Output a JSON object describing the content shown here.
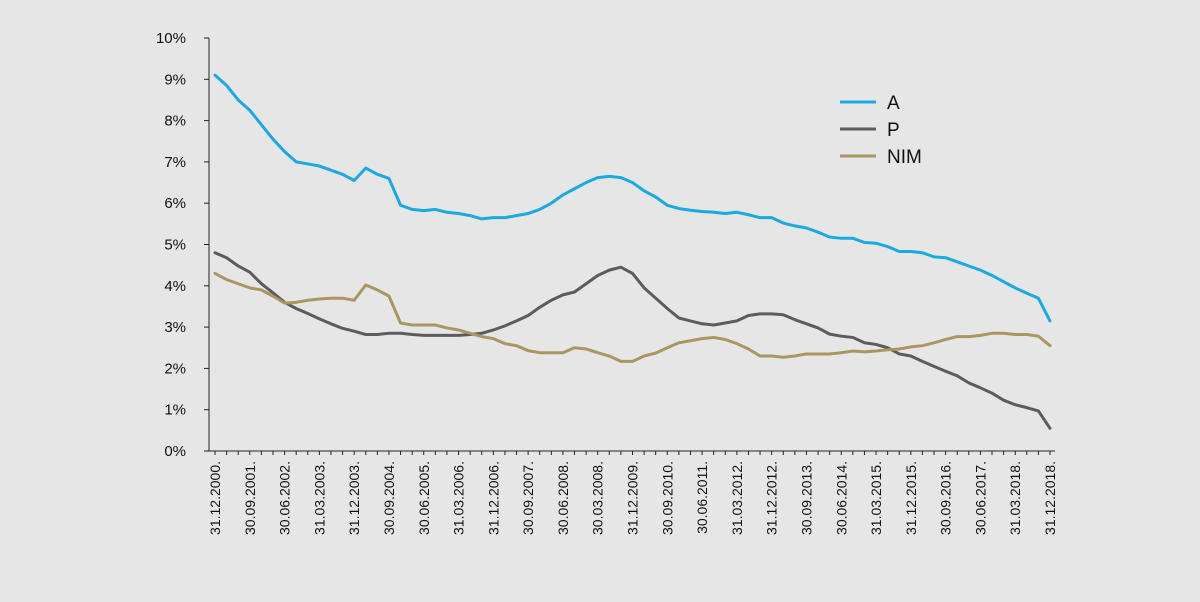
{
  "chart_data": {
    "type": "line",
    "y_tick_labels": [
      "0%",
      "1%",
      "2%",
      "3%",
      "4%",
      "5%",
      "6%",
      "7%",
      "8%",
      "9%",
      "10%"
    ],
    "ylim": [
      0,
      10
    ],
    "x_tick_labels": [
      "31.12.2000.",
      "30.09.2001.",
      "30.06.2002.",
      "31.03.2003.",
      "31.12.2003.",
      "30.09.2004.",
      "30.06.2005.",
      "31.03.2006.",
      "31.12.2006.",
      "30.09.2007.",
      "30.06.2008.",
      "30.03.2008.",
      "31.12.2009.",
      "30.09.2010.",
      "30.06.2011.",
      "31.03.2012.",
      "31.12.2012.",
      "30.09.2013.",
      "30.06.2014.",
      "31.03.2015.",
      "31.12.2015.",
      "30.09.2016.",
      "30.06.2017.",
      "31.03.2018.",
      "31.12.2018."
    ],
    "n_points": 73,
    "grid": false,
    "legend_position": "top-right",
    "series": [
      {
        "name": "A",
        "color": "#1aa9e0",
        "values": [
          9.1,
          8.85,
          8.5,
          8.25,
          7.9,
          7.55,
          7.25,
          7.0,
          6.95,
          6.9,
          6.8,
          6.7,
          6.55,
          6.85,
          6.7,
          6.6,
          5.95,
          5.85,
          5.82,
          5.85,
          5.78,
          5.75,
          5.7,
          5.62,
          5.65,
          5.65,
          5.7,
          5.75,
          5.85,
          6.0,
          6.2,
          6.35,
          6.5,
          6.62,
          6.65,
          6.62,
          6.5,
          6.3,
          6.15,
          5.95,
          5.87,
          5.83,
          5.8,
          5.78,
          5.75,
          5.78,
          5.72,
          5.65,
          5.65,
          5.52,
          5.45,
          5.4,
          5.3,
          5.18,
          5.15,
          5.15,
          5.05,
          5.03,
          4.95,
          4.83,
          4.83,
          4.8,
          4.7,
          4.68,
          4.58,
          4.48,
          4.38,
          4.25,
          4.1,
          3.95,
          3.82,
          3.7,
          3.15
        ]
      },
      {
        "name": "P",
        "color": "#5c5c5e",
        "values": [
          4.8,
          4.68,
          4.48,
          4.33,
          4.05,
          3.83,
          3.6,
          3.45,
          3.33,
          3.2,
          3.08,
          2.97,
          2.9,
          2.82,
          2.82,
          2.85,
          2.85,
          2.82,
          2.8,
          2.8,
          2.8,
          2.8,
          2.82,
          2.85,
          2.93,
          3.03,
          3.15,
          3.28,
          3.48,
          3.65,
          3.78,
          3.85,
          4.05,
          4.25,
          4.38,
          4.45,
          4.3,
          3.95,
          3.7,
          3.45,
          3.22,
          3.15,
          3.08,
          3.05,
          3.1,
          3.15,
          3.28,
          3.32,
          3.32,
          3.3,
          3.18,
          3.08,
          2.98,
          2.83,
          2.78,
          2.75,
          2.62,
          2.58,
          2.5,
          2.35,
          2.3,
          2.17,
          2.05,
          1.93,
          1.82,
          1.65,
          1.53,
          1.4,
          1.23,
          1.12,
          1.05,
          0.97,
          0.55
        ]
      },
      {
        "name": "NIM",
        "color": "#a99661",
        "values": [
          4.3,
          4.15,
          4.05,
          3.95,
          3.9,
          3.75,
          3.58,
          3.6,
          3.65,
          3.68,
          3.7,
          3.7,
          3.65,
          4.02,
          3.9,
          3.75,
          3.1,
          3.05,
          3.05,
          3.05,
          2.98,
          2.93,
          2.85,
          2.77,
          2.72,
          2.6,
          2.55,
          2.43,
          2.38,
          2.38,
          2.38,
          2.5,
          2.47,
          2.38,
          2.3,
          2.17,
          2.17,
          2.3,
          2.37,
          2.5,
          2.62,
          2.67,
          2.72,
          2.75,
          2.7,
          2.6,
          2.47,
          2.3,
          2.3,
          2.27,
          2.3,
          2.35,
          2.35,
          2.35,
          2.38,
          2.42,
          2.4,
          2.42,
          2.45,
          2.47,
          2.52,
          2.55,
          2.62,
          2.7,
          2.77,
          2.77,
          2.8,
          2.85,
          2.85,
          2.82,
          2.82,
          2.78,
          2.55
        ]
      }
    ]
  }
}
